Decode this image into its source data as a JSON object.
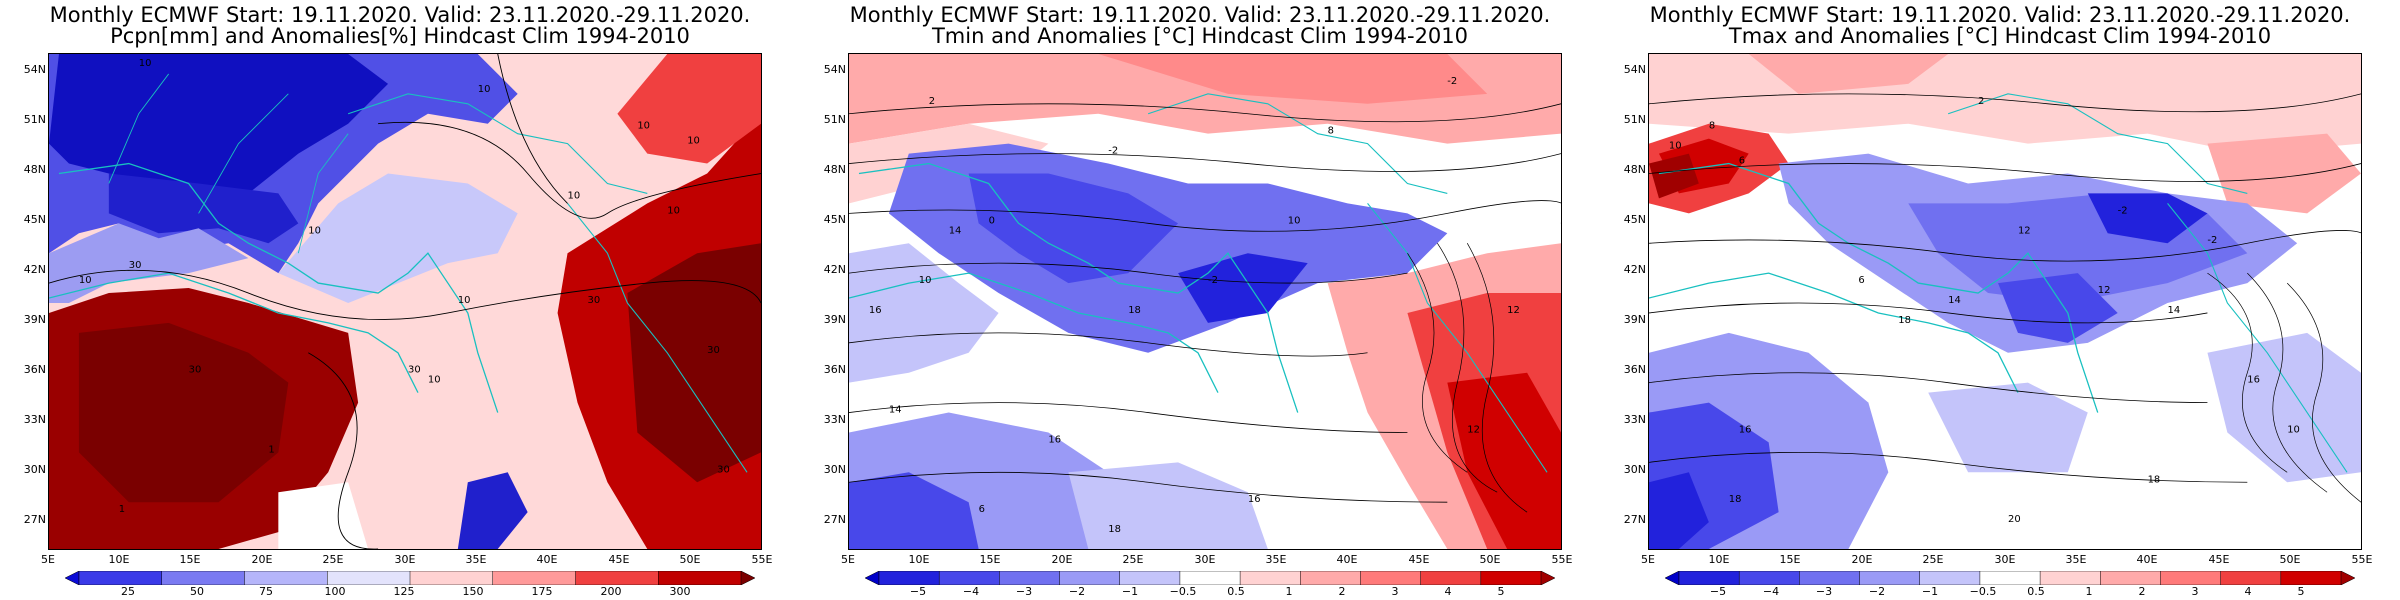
{
  "panels": [
    {
      "id": "pcpn",
      "title_line1": "Monthly ECMWF Start: 19.11.2020. Valid: 23.11.2020.-29.11.2020.",
      "title_line2": "Pcpn[mm] and Anomalies[%] Hindcast Clim 1994-2010",
      "colorbar_ticks": [
        "25",
        "50",
        "75",
        "100",
        "125",
        "150",
        "175",
        "200",
        "300"
      ],
      "colorbar_colors": [
        "#0b0bd6",
        "#3a3ae8",
        "#7a7af2",
        "#b5b5fa",
        "#e3e3fc",
        "#ffd2d2",
        "#ff9a9a",
        "#f04040",
        "#c00000",
        "#7a0000"
      ]
    },
    {
      "id": "tmin",
      "title_line1": "Monthly ECMWF Start: 19.11.2020. Valid: 23.11.2020.-29.11.2020.",
      "title_line2": "Tmin and Anomalies [°C] Hindcast Clim 1994-2010",
      "colorbar_ticks": [
        "−5",
        "−4",
        "−3",
        "−2",
        "−1",
        "−0.5",
        "0.5",
        "1",
        "2",
        "3",
        "4",
        "5"
      ],
      "colorbar_colors": [
        "#0000c8",
        "#2222dc",
        "#4848ea",
        "#7070f0",
        "#9a9af6",
        "#c4c4fa",
        "#ffffff",
        "#ffd2d2",
        "#ffaaaa",
        "#ff7a7a",
        "#f04040",
        "#d00000",
        "#a00000"
      ]
    },
    {
      "id": "tmax",
      "title_line1": "Monthly ECMWF Start: 19.11.2020. Valid: 23.11.2020.-29.11.2020.",
      "title_line2": "Tmax and Anomalies [°C] Hindcast Clim 1994-2010",
      "colorbar_ticks": [
        "−5",
        "−4",
        "−3",
        "−2",
        "−1",
        "−0.5",
        "0.5",
        "1",
        "2",
        "3",
        "4",
        "5"
      ],
      "colorbar_colors": [
        "#0000c8",
        "#2222dc",
        "#4848ea",
        "#7070f0",
        "#9a9af6",
        "#c4c4fa",
        "#ffffff",
        "#ffd2d2",
        "#ffaaaa",
        "#ff7a7a",
        "#f04040",
        "#d00000",
        "#a00000"
      ]
    }
  ],
  "lat_ticks": [
    "54N",
    "51N",
    "48N",
    "45N",
    "42N",
    "39N",
    "36N",
    "33N",
    "30N",
    "27N"
  ],
  "lon_ticks": [
    "5E",
    "10E",
    "15E",
    "20E",
    "25E",
    "30E",
    "35E",
    "40E",
    "45E",
    "50E",
    "55E"
  ],
  "pcpn_labels": [
    "10",
    "10",
    "10",
    "10",
    "10",
    "10",
    "10",
    "30",
    "30",
    "30",
    "30",
    "30",
    "30",
    "1",
    "1",
    "10",
    "10",
    "10"
  ],
  "tmin_labels": [
    "-2",
    "2",
    "-2",
    "0",
    "-2",
    "10",
    "14",
    "16",
    "18",
    "14",
    "16",
    "12",
    "16",
    "18",
    "10",
    "12",
    "6",
    "8"
  ],
  "tmax_labels": [
    "10",
    "8",
    "6",
    "2",
    "-2",
    "-2",
    "12",
    "18",
    "16",
    "14",
    "16",
    "18",
    "20",
    "12",
    "10",
    "6",
    "14",
    "18"
  ]
}
